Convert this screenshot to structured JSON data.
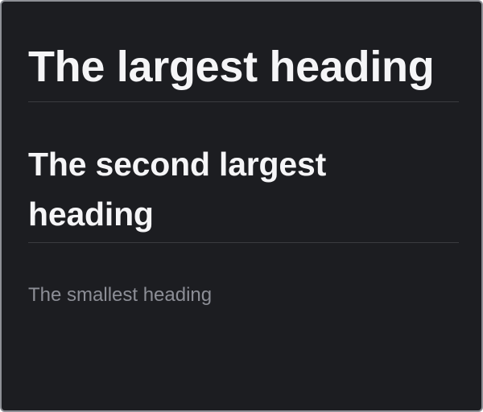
{
  "headings": {
    "largest": "The largest heading",
    "second": "The second largest heading",
    "smallest": "The smallest heading"
  },
  "colors": {
    "background": "#1c1d21",
    "heading_text": "#f5f5f7",
    "muted_text": "#8c8e96",
    "divider": "#3a3b40",
    "frame_border": "#8e9096"
  }
}
